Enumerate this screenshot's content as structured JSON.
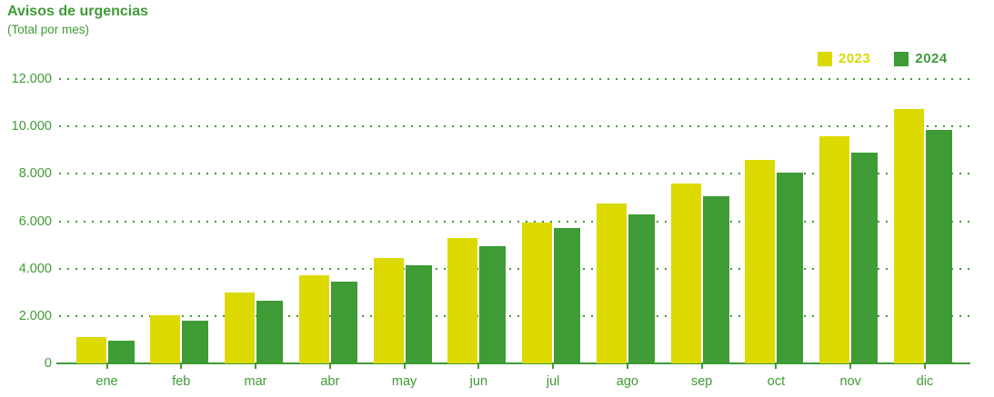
{
  "header": {
    "title": "Avisos de urgencias",
    "subtitle": "(Total por mes)"
  },
  "legend": {
    "items": [
      {
        "label": "2023",
        "color": "#dcd900"
      },
      {
        "label": "2024",
        "color": "#3f9b35"
      }
    ],
    "position": "top-right"
  },
  "colors": {
    "series_2023_yellow": "#dcd900",
    "series_2024_green": "#3f9b35",
    "axis_and_text_green": "#3f9b35",
    "background": "#ffffff"
  },
  "chart_data": {
    "type": "bar",
    "title": "Avisos de urgencias",
    "subtitle": "(Total por mes)",
    "categories": [
      "ene",
      "feb",
      "mar",
      "abr",
      "may",
      "jun",
      "jul",
      "ago",
      "sep",
      "oct",
      "nov",
      "dic"
    ],
    "series": [
      {
        "name": "2023",
        "color": "#dcd900",
        "values": [
          1100,
          2050,
          3000,
          3700,
          4450,
          5300,
          5950,
          6750,
          7600,
          8600,
          9600,
          10750
        ]
      },
      {
        "name": "2024",
        "color": "#3f9b35",
        "values": [
          950,
          1800,
          2650,
          3450,
          4150,
          4950,
          5700,
          6300,
          7050,
          8050,
          8900,
          9850
        ]
      }
    ],
    "xlabel": "",
    "ylabel": "",
    "ylim": [
      0,
      12000
    ],
    "ytick_step": 2000,
    "ytick_labels": [
      "0",
      "2.000",
      "4.000",
      "6.000",
      "8.000",
      "10.000",
      "12.000"
    ],
    "grid": "horizontal-dotted",
    "legend_position": "top-right"
  }
}
